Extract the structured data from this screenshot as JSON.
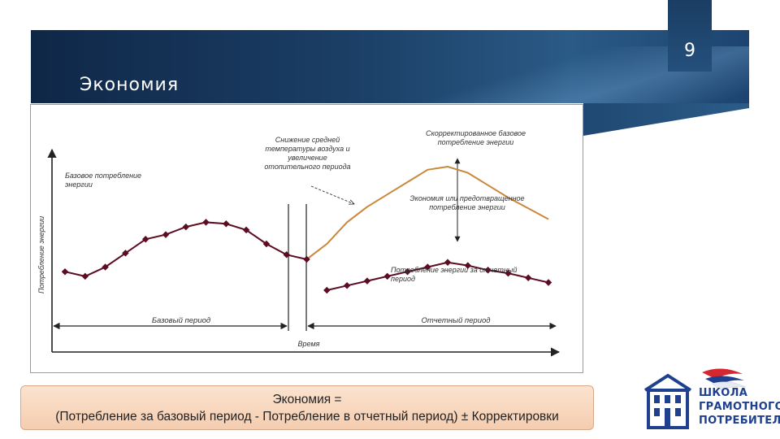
{
  "header": {
    "title": "Экономия",
    "page_number": "9"
  },
  "chart_data": {
    "type": "line",
    "xlabel": "Время",
    "ylabel": "Потребление энергии",
    "x": [
      1,
      2,
      3,
      4,
      5,
      6,
      7,
      8,
      9,
      10,
      11,
      12,
      13,
      14,
      15,
      16,
      17,
      18,
      19,
      20,
      21,
      22,
      23,
      24,
      25
    ],
    "series": [
      {
        "name": "Базовое потребление энергии",
        "values": [
          0.52,
          0.49,
          0.55,
          0.64,
          0.73,
          0.76,
          0.81,
          0.84,
          0.83,
          0.79,
          0.7,
          0.63,
          0.6,
          null,
          null,
          null,
          null,
          null,
          null,
          null,
          null,
          null,
          null,
          null,
          null
        ],
        "color": "#5c0d22"
      },
      {
        "name": "Потребление энергии за отчетный период",
        "values": [
          null,
          null,
          null,
          null,
          null,
          null,
          null,
          null,
          null,
          null,
          null,
          null,
          null,
          0.4,
          0.43,
          0.46,
          0.49,
          0.52,
          0.55,
          0.58,
          0.56,
          0.53,
          0.51,
          0.48,
          0.45
        ],
        "color": "#5c0d22"
      },
      {
        "name": "Скорректированное базовое потребление энергии",
        "values": [
          null,
          null,
          null,
          null,
          null,
          null,
          null,
          null,
          null,
          null,
          null,
          null,
          0.6,
          0.7,
          0.84,
          0.94,
          1.02,
          1.1,
          1.18,
          1.2,
          1.16,
          1.08,
          1.0,
          0.93,
          0.86
        ],
        "color": "#c9883a"
      }
    ],
    "labels": {
      "base_consumption": "Базовое потребление энергии",
      "temp_note": "Снижение средней температуры воздуха и увеличение отопительного периода",
      "adjusted_base": "Скорректированное базовое потребление энергии",
      "savings": "Экономия или предотвращенное потребление энергии",
      "report_consumption": "Потребление энергии за отчетный период",
      "base_period": "Базовый период",
      "report_period": "Отчетный период"
    },
    "ylim": [
      0,
      1.4
    ],
    "grid": false,
    "legend": "none"
  },
  "formula": {
    "line1": "Экономия =",
    "line2": "(Потребление за базовый период - Потребление в отчетный период) ± Корректировки"
  },
  "logo": {
    "line1": "ШКОЛА",
    "line2": "ГРАМОТНОГО",
    "line3": "ПОТРЕБИТЕЛЯ"
  },
  "colors": {
    "banner": "#1b3f66",
    "main_series": "#5c0d22",
    "adjusted_series": "#c9883a",
    "formula_bg": "#f9d9c0",
    "logo_blue": "#1f3f8f",
    "logo_red": "#d6262f"
  }
}
